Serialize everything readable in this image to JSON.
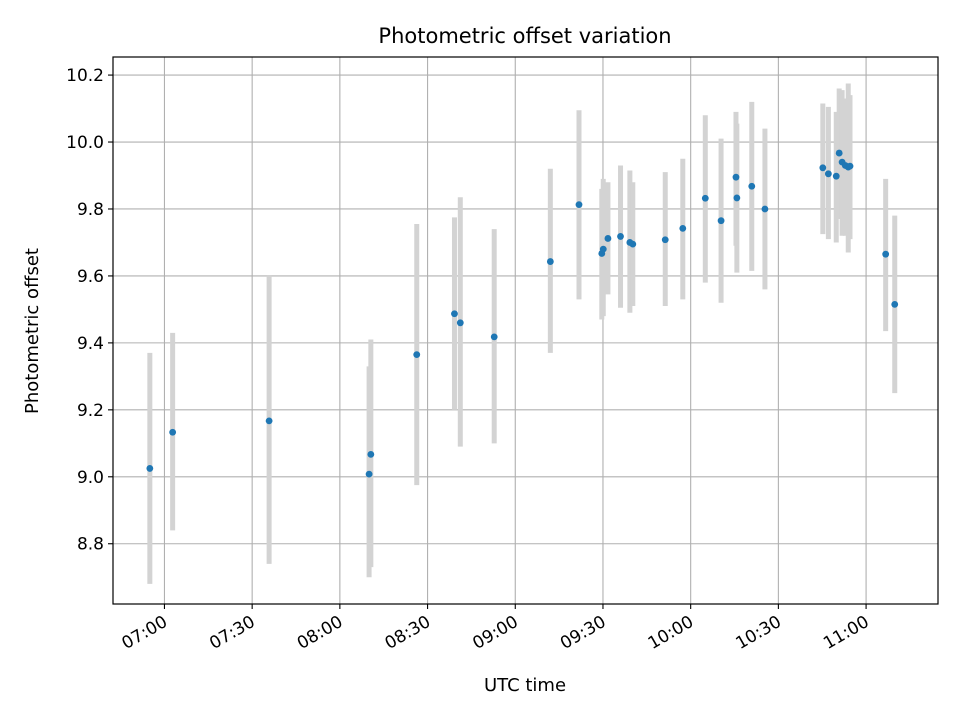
{
  "chart_data": {
    "type": "scatter",
    "title": "Photometric offset variation",
    "xlabel": "UTC time",
    "ylabel": "Photometric offset",
    "x_unit": "minutes since 00:00 UTC",
    "xlim": [
      402.4,
      684.6
    ],
    "ylim": [
      8.62,
      10.254
    ],
    "x_ticks": [
      {
        "value": 420,
        "label": "07:00"
      },
      {
        "value": 450,
        "label": "07:30"
      },
      {
        "value": 480,
        "label": "08:00"
      },
      {
        "value": 510,
        "label": "08:30"
      },
      {
        "value": 540,
        "label": "09:00"
      },
      {
        "value": 570,
        "label": "09:30"
      },
      {
        "value": 600,
        "label": "10:00"
      },
      {
        "value": 630,
        "label": "10:30"
      },
      {
        "value": 660,
        "label": "11:00"
      }
    ],
    "y_ticks": [
      {
        "value": 8.8,
        "label": "8.8"
      },
      {
        "value": 9.0,
        "label": "9.0"
      },
      {
        "value": 9.2,
        "label": "9.2"
      },
      {
        "value": 9.4,
        "label": "9.4"
      },
      {
        "value": 9.6,
        "label": "9.6"
      },
      {
        "value": 9.8,
        "label": "9.8"
      },
      {
        "value": 10.0,
        "label": "10.0"
      },
      {
        "value": 10.2,
        "label": "10.2"
      }
    ],
    "grid": true,
    "colors": {
      "point": "#1f77b4",
      "errorbar": "#d3d3d3",
      "grid": "#b0b0b0",
      "axis": "#000000"
    },
    "points": [
      {
        "x": 415.0,
        "y": 9.025,
        "lo": 8.68,
        "hi": 9.37
      },
      {
        "x": 422.8,
        "y": 9.133,
        "lo": 8.84,
        "hi": 9.43
      },
      {
        "x": 455.8,
        "y": 9.167,
        "lo": 8.74,
        "hi": 9.6
      },
      {
        "x": 490.0,
        "y": 9.008,
        "lo": 8.7,
        "hi": 9.33
      },
      {
        "x": 490.6,
        "y": 9.067,
        "lo": 8.73,
        "hi": 9.41
      },
      {
        "x": 506.3,
        "y": 9.365,
        "lo": 8.975,
        "hi": 9.755
      },
      {
        "x": 519.2,
        "y": 9.487,
        "lo": 9.2,
        "hi": 9.775
      },
      {
        "x": 521.2,
        "y": 9.46,
        "lo": 9.09,
        "hi": 9.835
      },
      {
        "x": 532.8,
        "y": 9.418,
        "lo": 9.1,
        "hi": 9.74
      },
      {
        "x": 552.0,
        "y": 9.643,
        "lo": 9.37,
        "hi": 9.92
      },
      {
        "x": 561.8,
        "y": 9.813,
        "lo": 9.53,
        "hi": 10.095
      },
      {
        "x": 569.6,
        "y": 9.667,
        "lo": 9.47,
        "hi": 9.86
      },
      {
        "x": 570.1,
        "y": 9.68,
        "lo": 9.48,
        "hi": 9.89
      },
      {
        "x": 571.7,
        "y": 9.712,
        "lo": 9.545,
        "hi": 9.88
      },
      {
        "x": 576.0,
        "y": 9.718,
        "lo": 9.505,
        "hi": 9.93
      },
      {
        "x": 579.2,
        "y": 9.7,
        "lo": 9.49,
        "hi": 9.915
      },
      {
        "x": 580.2,
        "y": 9.695,
        "lo": 9.51,
        "hi": 9.88
      },
      {
        "x": 591.3,
        "y": 9.708,
        "lo": 9.51,
        "hi": 9.91
      },
      {
        "x": 597.3,
        "y": 9.742,
        "lo": 9.53,
        "hi": 9.95
      },
      {
        "x": 605.0,
        "y": 9.832,
        "lo": 9.58,
        "hi": 10.08
      },
      {
        "x": 610.4,
        "y": 9.765,
        "lo": 9.52,
        "hi": 10.01
      },
      {
        "x": 615.5,
        "y": 9.895,
        "lo": 9.69,
        "hi": 10.09
      },
      {
        "x": 615.8,
        "y": 9.833,
        "lo": 9.61,
        "hi": 10.055
      },
      {
        "x": 620.9,
        "y": 9.868,
        "lo": 9.615,
        "hi": 10.12
      },
      {
        "x": 625.4,
        "y": 9.8,
        "lo": 9.56,
        "hi": 10.04
      },
      {
        "x": 645.2,
        "y": 9.923,
        "lo": 9.725,
        "hi": 10.115
      },
      {
        "x": 647.1,
        "y": 9.905,
        "lo": 9.71,
        "hi": 10.105
      },
      {
        "x": 649.8,
        "y": 9.898,
        "lo": 9.7,
        "hi": 10.09
      },
      {
        "x": 650.8,
        "y": 9.967,
        "lo": 9.77,
        "hi": 10.16
      },
      {
        "x": 651.8,
        "y": 9.94,
        "lo": 9.72,
        "hi": 10.155
      },
      {
        "x": 652.9,
        "y": 9.93,
        "lo": 9.72,
        "hi": 10.13
      },
      {
        "x": 653.9,
        "y": 9.925,
        "lo": 9.67,
        "hi": 10.175
      },
      {
        "x": 654.5,
        "y": 9.928,
        "lo": 9.71,
        "hi": 10.14
      },
      {
        "x": 666.7,
        "y": 9.665,
        "lo": 9.435,
        "hi": 9.89
      },
      {
        "x": 669.8,
        "y": 9.515,
        "lo": 9.25,
        "hi": 9.78
      }
    ]
  }
}
